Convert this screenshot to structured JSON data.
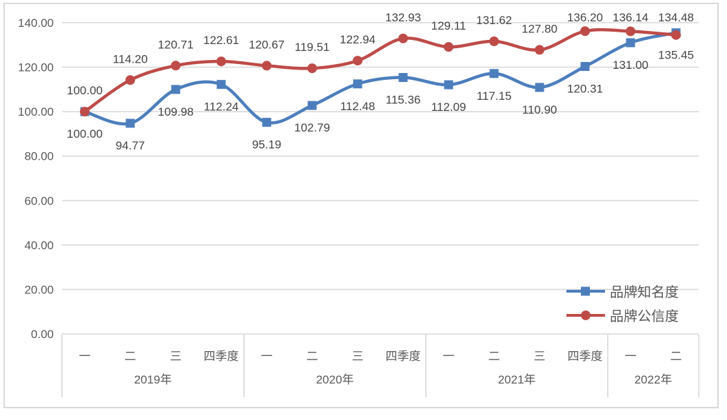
{
  "chart_data": {
    "type": "line",
    "title": "",
    "grid": true,
    "smooth_lines": true,
    "ylim": [
      0,
      140
    ],
    "y_ticks": [
      0,
      20,
      40,
      60,
      80,
      100,
      120,
      140
    ],
    "y_tick_labels": [
      "0.00",
      "20.00",
      "40.00",
      "60.00",
      "80.00",
      "100.00",
      "120.00",
      "140.00"
    ],
    "categories": [
      "一",
      "二",
      "三",
      "四季度",
      "一",
      "二",
      "三",
      "四季度",
      "一",
      "二",
      "三",
      "四季度",
      "一",
      "二"
    ],
    "year_groups": [
      {
        "label": "2019年",
        "span": 4
      },
      {
        "label": "2020年",
        "span": 4
      },
      {
        "label": "2021年",
        "span": 4
      },
      {
        "label": "2022年",
        "span": 2
      }
    ],
    "series": [
      {
        "name": "品牌知名度",
        "color": "#4C7EBD",
        "marker": "square",
        "label_position": "below",
        "values": [
          100.0,
          94.77,
          109.98,
          112.24,
          95.19,
          102.79,
          112.48,
          115.36,
          112.09,
          117.15,
          110.9,
          120.31,
          131.0,
          135.45
        ],
        "labels": [
          "100.00",
          "94.77",
          "109.98",
          "112.24",
          "95.19",
          "102.79",
          "112.48",
          "115.36",
          "112.09",
          "117.15",
          "110.90",
          "120.31",
          "131.00",
          "135.45"
        ]
      },
      {
        "name": "品牌公信度",
        "color": "#BE4B48",
        "marker": "circle",
        "label_position": "above",
        "values": [
          100.0,
          114.2,
          120.71,
          122.61,
          120.67,
          119.51,
          122.94,
          132.93,
          129.11,
          131.62,
          127.8,
          136.2,
          136.14,
          134.48
        ],
        "labels": [
          "100.00",
          "114.20",
          "120.71",
          "122.61",
          "120.67",
          "119.51",
          "122.94",
          "132.93",
          "129.11",
          "131.62",
          "127.80",
          "136.20",
          "136.14",
          "134.48"
        ]
      }
    ],
    "legend_position": "right-middle",
    "colors": {
      "grid": "#d9d9d9",
      "axis_divider": "#d3d3d3",
      "frame_border": "#d9d9d9",
      "axis_text": "#595959",
      "data_label_text": "#444444"
    }
  }
}
